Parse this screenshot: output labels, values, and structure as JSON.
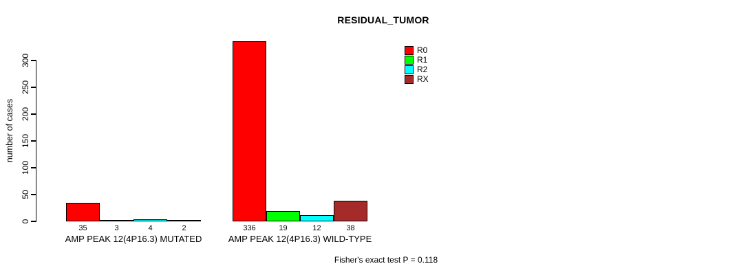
{
  "chart_data": {
    "type": "bar",
    "title": "RESIDUAL_TUMOR",
    "xlabel": "",
    "ylabel": "number of cases",
    "ylim": [
      0,
      300
    ],
    "yticks": [
      0,
      50,
      100,
      150,
      200,
      250,
      300
    ],
    "grid": false,
    "legend_position": "top-right-inside",
    "categories": [
      "AMP PEAK 12(4P16.3) MUTATED",
      "AMP PEAK 12(4P16.3) WILD-TYPE"
    ],
    "series": [
      {
        "name": "R0",
        "color": "#FF0000",
        "values": [
          35,
          336
        ]
      },
      {
        "name": "R1",
        "color": "#00FF00",
        "values": [
          3,
          19
        ]
      },
      {
        "name": "R2",
        "color": "#00FFFF",
        "values": [
          4,
          12
        ]
      },
      {
        "name": "RX",
        "color": "#A52A2A",
        "values": [
          2,
          38
        ]
      }
    ],
    "bar_value_labels": [
      [
        35,
        3,
        4,
        2
      ],
      [
        336,
        19,
        12,
        38
      ]
    ]
  },
  "footer": {
    "stat_text": "Fisher's exact test P = 0.118"
  },
  "colors": {
    "axis": "#000000",
    "background": "#FFFFFF",
    "r0": "#FF0000",
    "r1": "#00FF00",
    "r2": "#00FFFF",
    "rx": "#A52A2A"
  }
}
